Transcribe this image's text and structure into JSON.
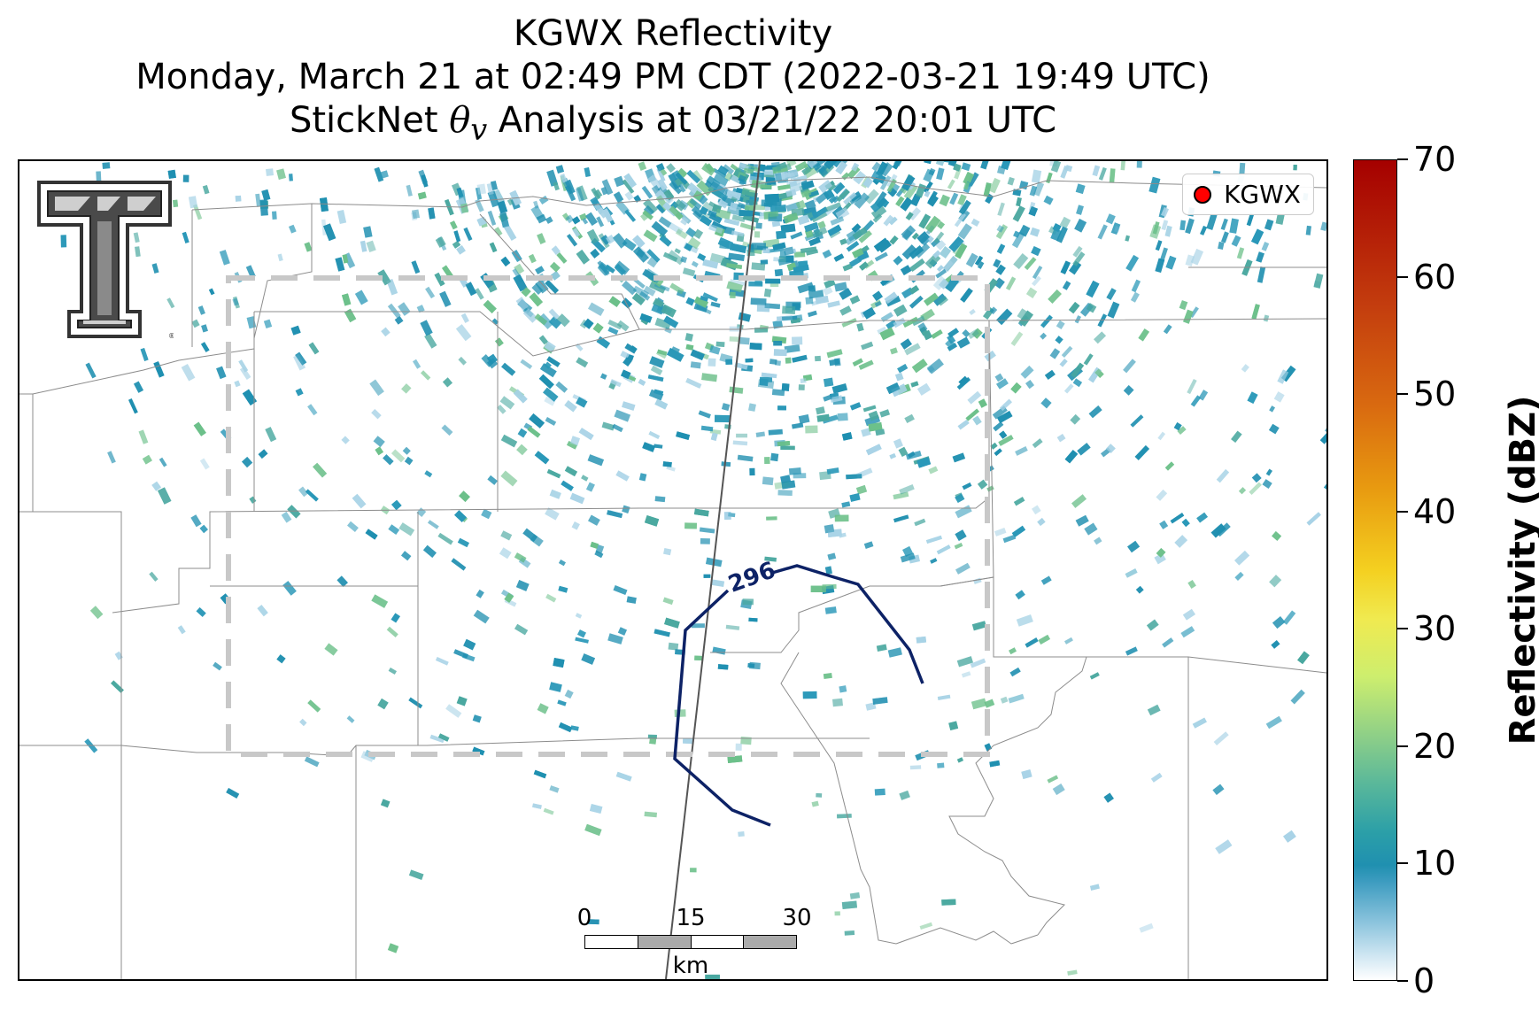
{
  "title": {
    "line1": "KGWX Reflectivity",
    "line2": "Monday, March 21 at 02:49 PM CDT (2022-03-21 19:49 UTC)",
    "line3_prefix": "StickNet ",
    "line3_symbol": "θ",
    "line3_subscript": "v",
    "line3_suffix": " Analysis at 03/21/22 20:01 UTC"
  },
  "legend": {
    "radar_label": "KGWX",
    "marker_color": "#ff0000"
  },
  "contour": {
    "label": "296",
    "color": "#0d2266"
  },
  "scalebar": {
    "ticks": [
      "0",
      "15",
      "30"
    ],
    "unit": "km"
  },
  "colorbar": {
    "label": "Reflectivity (dBZ)",
    "ticks": [
      "0",
      "10",
      "20",
      "30",
      "40",
      "50",
      "60",
      "70"
    ],
    "min": 0,
    "max": 70
  },
  "colors": {
    "echo_primary": "#1f8fb0",
    "echo_light": "#a8d3e6",
    "echo_green": "#6cc08a",
    "county_lines": "#8c8c8c",
    "analysis_box": "#c8c8c8"
  },
  "logo": {
    "icon": "texas-tech-double-t-logo"
  }
}
